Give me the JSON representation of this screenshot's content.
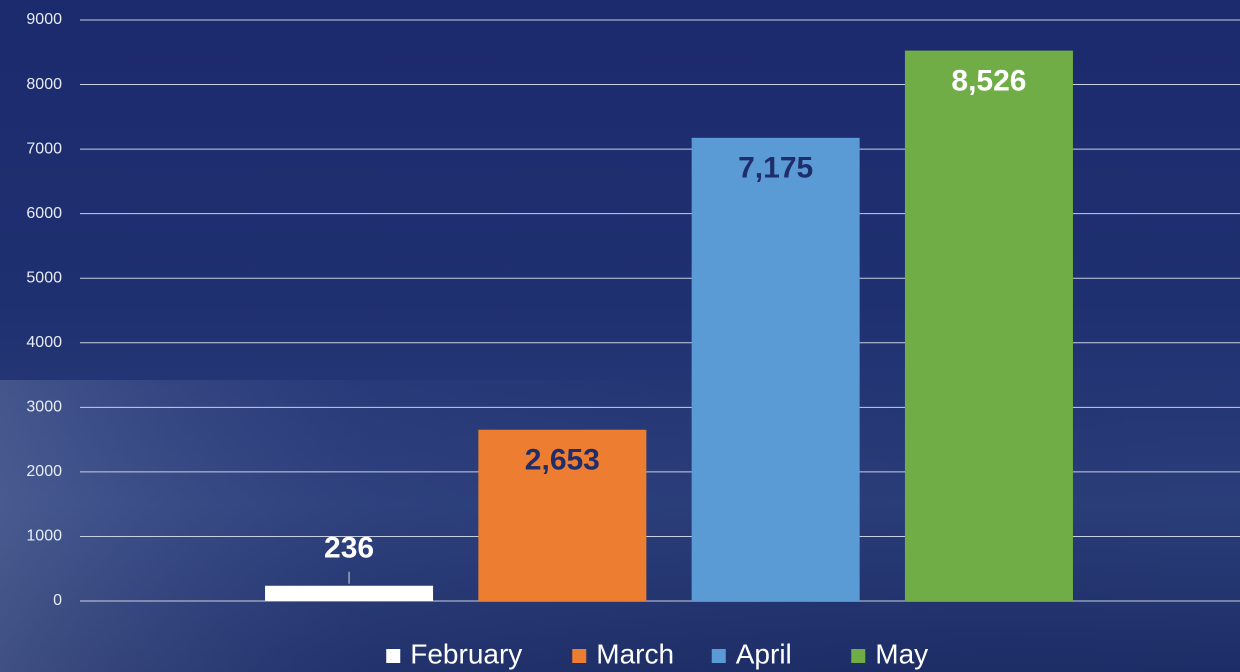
{
  "chart_data": {
    "type": "bar",
    "categories": [
      null
    ],
    "series": [
      {
        "name": "February",
        "color": "#ffffff",
        "label_color": "#ffffff",
        "values": [
          236
        ],
        "value_labels": [
          "236"
        ]
      },
      {
        "name": "March",
        "color": "#ed7d31",
        "label_color": "#1f2d6b",
        "values": [
          2653
        ],
        "value_labels": [
          "2,653"
        ]
      },
      {
        "name": "April",
        "color": "#5b9bd5",
        "label_color": "#1f2d6b",
        "values": [
          7175
        ],
        "value_labels": [
          "7,175"
        ]
      },
      {
        "name": "May",
        "color": "#70ad47",
        "label_color": "#ffffff",
        "values": [
          8526
        ],
        "value_labels": [
          "8,526"
        ]
      }
    ],
    "ylim": [
      0,
      9000
    ],
    "yticks": [
      0,
      1000,
      2000,
      3000,
      4000,
      5000,
      6000,
      7000,
      8000,
      9000
    ],
    "grid": true,
    "legend": "bottom"
  }
}
